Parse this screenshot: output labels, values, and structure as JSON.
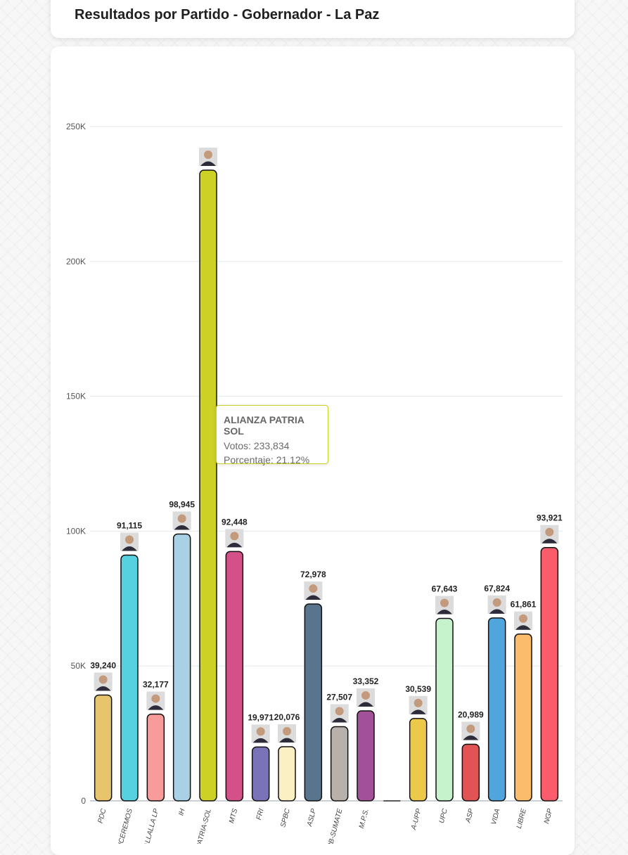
{
  "header": {
    "title": "Resultados por Partido - Gobernador - La Paz"
  },
  "tooltip": {
    "party": "ALIANZA PATRIA SOL",
    "votes_label": "Votos:",
    "votes_value": "233,834",
    "percent_label": "Porcentaje:",
    "percent_value": "21.12%",
    "border_color": "#c9d022"
  },
  "chart_data": {
    "type": "bar",
    "title": "Resultados por Partido - Gobernador - La Paz",
    "xlabel": "",
    "ylabel": "",
    "ylim": [
      0,
      250000
    ],
    "y_ticks": [
      0,
      50000,
      100000,
      150000,
      200000,
      250000
    ],
    "y_tick_labels": [
      "0",
      "50K",
      "100K",
      "150K",
      "200K",
      "250K"
    ],
    "grid": true,
    "categories": [
      "PDC",
      "VENCEREMOS",
      "JALLALLA LP",
      "IH",
      "PATRIA-SOL",
      "MTS",
      "FRI",
      "SPBC",
      "ASLP",
      "PB-SUMATE",
      "M.P.S.",
      "",
      "A-UPP",
      "UPC",
      "ASP",
      "VIDA",
      "LIBRE",
      "NGP"
    ],
    "values": [
      39240,
      91115,
      32177,
      98945,
      233834,
      92448,
      19971,
      20076,
      72978,
      27507,
      33352,
      0,
      30539,
      67643,
      20989,
      67824,
      61861,
      93921
    ],
    "value_labels": [
      "39,240",
      "91,115",
      "32,177",
      "98,945",
      "",
      "92,448",
      "19,971",
      "20,076",
      "72,978",
      "27,507",
      "33,352",
      "",
      "30,539",
      "67,643",
      "20,989",
      "67,824",
      "61,861",
      "93,921"
    ],
    "colors": [
      "#e8c46c",
      "#56d1e0",
      "#f79b9b",
      "#a8d1e5",
      "#cdd124",
      "#d45088",
      "#7b73b8",
      "#fbefc4",
      "#58758d",
      "#b8b0ab",
      "#a25097",
      "#cccccc",
      "#ecc949",
      "#c6f3cc",
      "#e25353",
      "#4fa6dc",
      "#fbbd6b",
      "#fb5c6b"
    ],
    "has_photo": [
      true,
      true,
      true,
      true,
      true,
      true,
      true,
      true,
      true,
      true,
      true,
      false,
      true,
      true,
      true,
      true,
      true,
      true
    ],
    "legend": "none"
  }
}
